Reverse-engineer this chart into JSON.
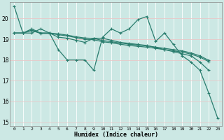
{
  "xlabel": "Humidex (Indice chaleur)",
  "background_color": "#cce8e4",
  "grid_color": "#dddddd",
  "line_color": "#2a7d6e",
  "xlim": [
    -0.5,
    23.5
  ],
  "ylim": [
    14.8,
    20.8
  ],
  "yticks": [
    15,
    16,
    17,
    18,
    19,
    20
  ],
  "xticks": [
    0,
    1,
    2,
    3,
    4,
    5,
    6,
    7,
    8,
    9,
    10,
    11,
    12,
    13,
    14,
    15,
    16,
    17,
    18,
    19,
    20,
    21,
    22,
    23
  ],
  "series": [
    [
      20.6,
      19.3,
      19.3,
      19.5,
      19.3,
      18.5,
      18.0,
      18.0,
      18.0,
      17.5,
      19.1,
      19.5,
      19.3,
      19.5,
      19.95,
      20.1,
      18.9,
      19.3,
      18.75,
      18.2,
      17.9,
      17.5,
      16.4,
      15.2
    ],
    [
      19.3,
      19.3,
      19.5,
      19.3,
      19.3,
      19.1,
      19.05,
      18.95,
      18.85,
      19.05,
      19.05,
      18.95,
      18.85,
      18.8,
      18.75,
      18.7,
      18.6,
      18.5,
      18.4,
      18.3,
      18.2,
      17.9,
      17.5,
      null
    ],
    [
      19.3,
      19.3,
      19.42,
      19.28,
      19.28,
      19.22,
      19.16,
      19.08,
      19.0,
      18.98,
      18.88,
      18.83,
      18.76,
      18.7,
      18.66,
      18.62,
      18.56,
      18.5,
      18.44,
      18.38,
      18.28,
      18.14,
      17.92,
      null
    ],
    [
      19.3,
      19.3,
      19.44,
      19.3,
      19.3,
      19.26,
      19.2,
      19.12,
      19.06,
      19.04,
      18.94,
      18.88,
      18.82,
      18.76,
      18.72,
      18.68,
      18.62,
      18.56,
      18.5,
      18.44,
      18.34,
      18.2,
      17.98,
      null
    ]
  ]
}
